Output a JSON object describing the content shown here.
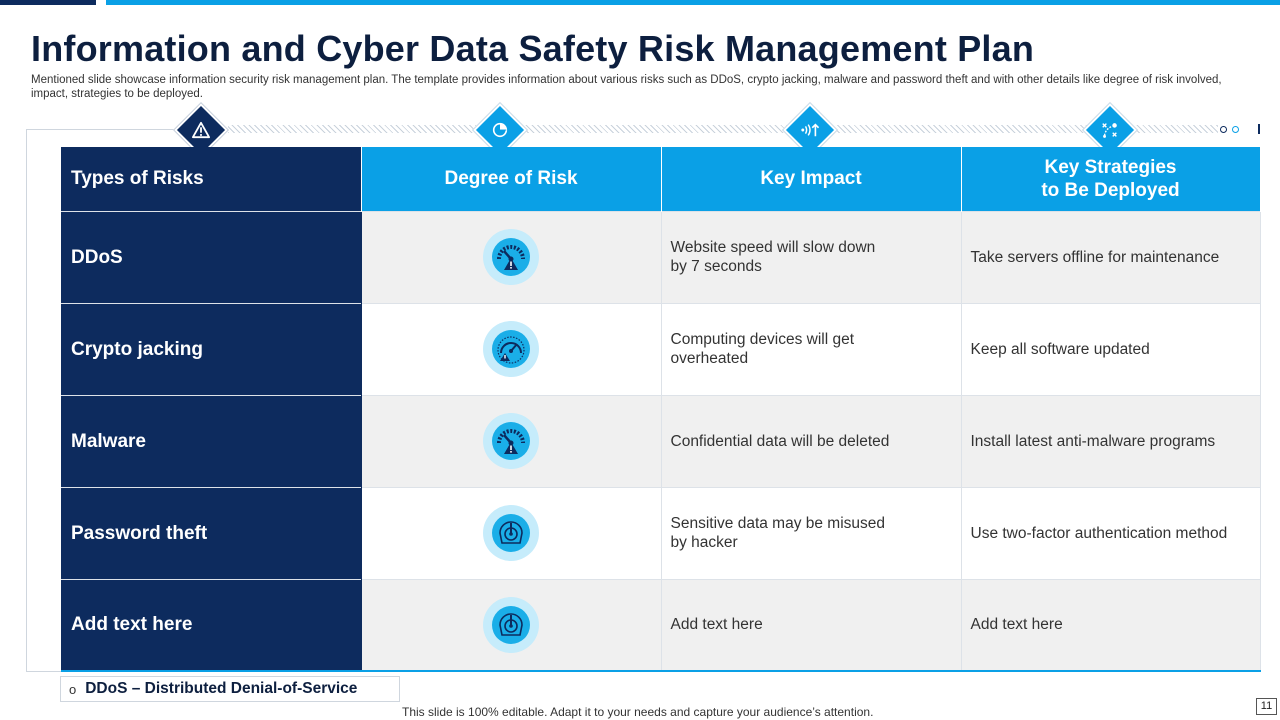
{
  "slide": {
    "title": "Information and Cyber Data Safety Risk Management Plan",
    "subtitle": "Mentioned slide showcase information security risk management plan. The template provides information about various risks such as DDoS, crypto jacking, malware and password theft and with other details like degree of risk involved, impact, strategies to be deployed.",
    "footer": "This slide is 100% editable. Adapt it to your needs and capture your audience’s attention.",
    "page_number": "11"
  },
  "colors": {
    "navy": "#0d2b5e",
    "accent_blue": "#0aa0e6",
    "light_blue": "#c6ecfb",
    "row_shade": "#f0f0f0"
  },
  "header_icons": [
    "warning-icon",
    "pie-chart-icon",
    "signal-up-icon",
    "strategy-path-icon"
  ],
  "table": {
    "headers": [
      "Types of Risks",
      "Degree of Risk",
      "Key Impact",
      "Key Strategies to Be Deployed"
    ],
    "rows": [
      {
        "risk": "DDoS",
        "degree_icon": "high-risk-gauge-icon",
        "impact": "Website speed will slow down by 7 seconds",
        "strategy": "Take servers offline for maintenance"
      },
      {
        "risk": "Crypto jacking",
        "degree_icon": "medium-risk-gauge-icon",
        "impact": "Computing devices will get overheated",
        "strategy": "Keep all software updated"
      },
      {
        "risk": "Malware",
        "degree_icon": "high-risk-gauge-icon",
        "impact": "Confidential data will be deleted",
        "strategy": "Install latest anti-malware programs"
      },
      {
        "risk": "Password theft",
        "degree_icon": "low-risk-gauge-icon",
        "impact": "Sensitive data may be misused by hacker",
        "strategy": "Use two-factor authentication method"
      },
      {
        "risk": "Add text here",
        "degree_icon": "low-risk-gauge-icon",
        "impact": "Add text here",
        "strategy": "Add text here"
      }
    ]
  },
  "legend": {
    "bullet": "o",
    "text": "DDoS – Distributed Denial-of-Service"
  }
}
